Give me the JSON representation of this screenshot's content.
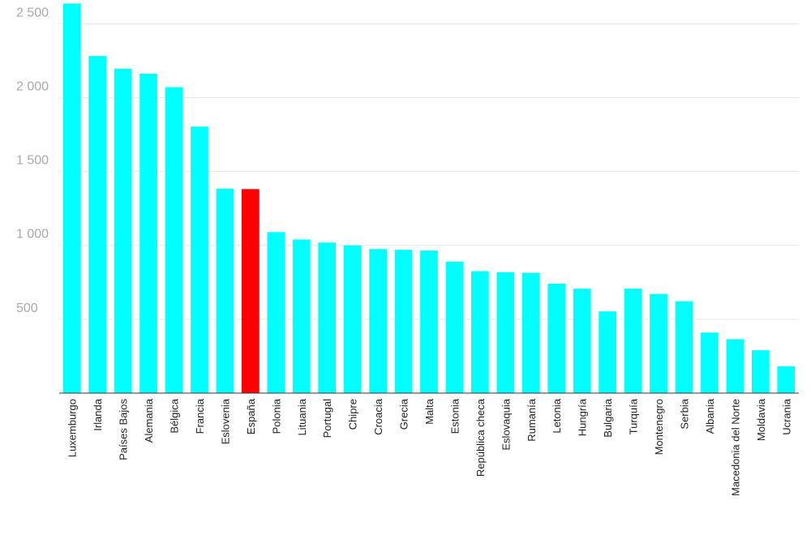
{
  "chart_data": {
    "type": "bar",
    "title": "",
    "xlabel": "",
    "ylabel": "",
    "ylim": [
      0,
      2650
    ],
    "yticks": [
      500,
      1000,
      1500,
      2000,
      2500
    ],
    "ytick_labels": [
      "500",
      "1 000",
      "1 500",
      "2 000",
      "2 500"
    ],
    "grid": true,
    "legend": "none",
    "categories": [
      "Luxemburgo",
      "Irlanda",
      "Países Bajos",
      "Alemania",
      "Bélgica",
      "Francia",
      "Eslovenia",
      "España",
      "Polonia",
      "Lituania",
      "Portugal",
      "Chipre",
      "Croacia",
      "Grecia",
      "Malta",
      "Estonia",
      "República checa",
      "Eslovaquia",
      "Rumanía",
      "Letonia",
      "Hungría",
      "Bulgaria",
      "Turquía",
      "Montenegro",
      "Serbia",
      "Albania",
      "Macedonia del Norte",
      "Moldavia",
      "Ucrania"
    ],
    "values": [
      2637,
      2282,
      2196,
      2162,
      2071,
      1804,
      1384,
      1381,
      1090,
      1040,
      1019,
      1000,
      975,
      970,
      965,
      890,
      825,
      819,
      814,
      741,
      707,
      553,
      707,
      671,
      622,
      410,
      365,
      290,
      182
    ],
    "colors": {
      "default": "#00ffff",
      "highlight": "#ff0000",
      "highlight_category": "España"
    }
  }
}
